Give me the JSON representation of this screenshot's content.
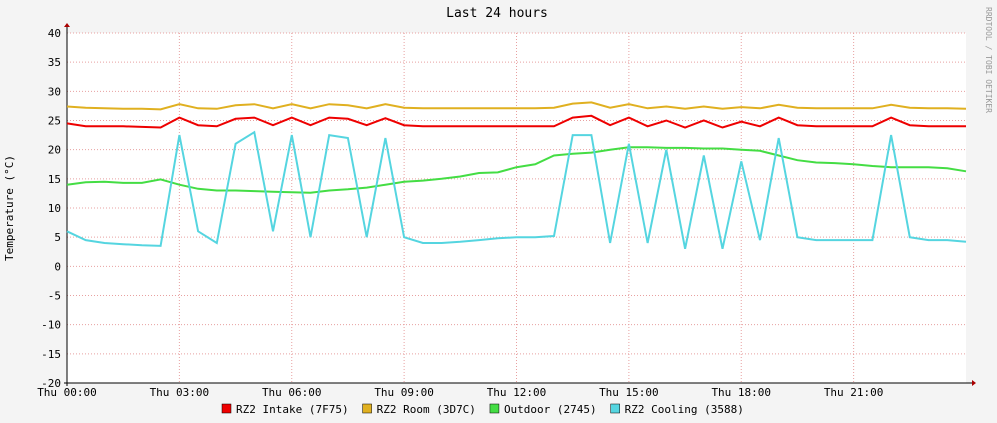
{
  "chart_data": {
    "type": "line",
    "title": "Last 24 hours",
    "y_label": "Temperature (°C)",
    "side_note": "RRDTOOL / TOBI OETIKER",
    "x": [
      0,
      0.5,
      1,
      1.5,
      2,
      2.5,
      3,
      3.5,
      4,
      4.5,
      5,
      5.5,
      6,
      6.5,
      7,
      7.5,
      8,
      8.5,
      9,
      9.5,
      10,
      10.5,
      11,
      11.5,
      12,
      12.5,
      13,
      13.5,
      14,
      14.5,
      15,
      15.5,
      16,
      16.5,
      17,
      17.5,
      18,
      18.5,
      19,
      19.5,
      20,
      20.5,
      21,
      21.5,
      22,
      22.5,
      23,
      23.5,
      24
    ],
    "xlim": [
      0,
      24
    ],
    "xticks": [
      {
        "value": 0,
        "label": "Thu 00:00"
      },
      {
        "value": 3,
        "label": "Thu 03:00"
      },
      {
        "value": 6,
        "label": "Thu 06:00"
      },
      {
        "value": 9,
        "label": "Thu 09:00"
      },
      {
        "value": 12,
        "label": "Thu 12:00"
      },
      {
        "value": 15,
        "label": "Thu 15:00"
      },
      {
        "value": 18,
        "label": "Thu 18:00"
      },
      {
        "value": 21,
        "label": "Thu 21:00"
      }
    ],
    "ylim": [
      -20,
      40
    ],
    "yticks": [
      -20,
      -15,
      -10,
      -5,
      0,
      5,
      10,
      15,
      20,
      25,
      30,
      35,
      40
    ],
    "grid": true,
    "legend": "bottom",
    "series": [
      {
        "name": "RZ2 Intake (7F75)",
        "color": "#ee0000",
        "values": [
          24.5,
          24,
          24,
          24,
          23.9,
          23.8,
          25.5,
          24.2,
          24,
          25.3,
          25.5,
          24.2,
          25.5,
          24.2,
          25.5,
          25.3,
          24.2,
          25.4,
          24.2,
          24,
          24,
          24,
          24,
          24,
          24,
          24,
          24,
          25.5,
          25.8,
          24.2,
          25.5,
          24,
          25,
          23.8,
          25,
          23.8,
          24.8,
          24,
          25.5,
          24.2,
          24,
          24,
          24,
          24,
          25.5,
          24.2,
          24,
          24,
          24
        ]
      },
      {
        "name": "RZ2 Room (3D7C)",
        "color": "#e0b020",
        "values": [
          27.4,
          27.2,
          27.1,
          27,
          27,
          26.9,
          27.8,
          27.1,
          27,
          27.6,
          27.8,
          27.1,
          27.8,
          27.1,
          27.8,
          27.6,
          27.1,
          27.8,
          27.2,
          27.1,
          27.1,
          27.1,
          27.1,
          27.1,
          27.1,
          27.1,
          27.2,
          27.9,
          28.1,
          27.2,
          27.8,
          27.1,
          27.4,
          27,
          27.4,
          27,
          27.3,
          27.1,
          27.7,
          27.2,
          27.1,
          27.1,
          27.1,
          27.1,
          27.7,
          27.2,
          27.1,
          27.1,
          27
        ]
      },
      {
        "name": "Outdoor (2745)",
        "color": "#44dd44",
        "values": [
          14,
          14.4,
          14.5,
          14.3,
          14.3,
          14.9,
          14,
          13.3,
          13,
          13,
          12.9,
          12.8,
          12.7,
          12.6,
          13,
          13.2,
          13.5,
          14,
          14.5,
          14.7,
          15,
          15.4,
          16,
          16.1,
          17,
          17.5,
          19,
          19.3,
          19.5,
          20,
          20.4,
          20.4,
          20.3,
          20.3,
          20.2,
          20.2,
          20,
          19.8,
          19,
          18.2,
          17.8,
          17.7,
          17.5,
          17.2,
          17,
          17,
          17,
          16.8,
          16.3
        ]
      },
      {
        "name": "RZ2 Cooling (3588)",
        "color": "#55d5e0",
        "values": [
          6,
          4.5,
          4,
          3.8,
          3.6,
          3.5,
          22.5,
          6,
          4,
          21,
          23,
          6,
          22.5,
          5,
          22.5,
          22,
          5,
          22,
          5,
          4,
          4,
          4.2,
          4.5,
          4.8,
          5,
          5,
          5.2,
          22.5,
          22.5,
          4,
          21,
          4,
          20,
          3,
          19,
          3,
          18,
          4.5,
          22,
          5,
          4.5,
          4.5,
          4.5,
          4.5,
          22.5,
          5,
          4.5,
          4.5,
          4.2
        ]
      }
    ]
  }
}
